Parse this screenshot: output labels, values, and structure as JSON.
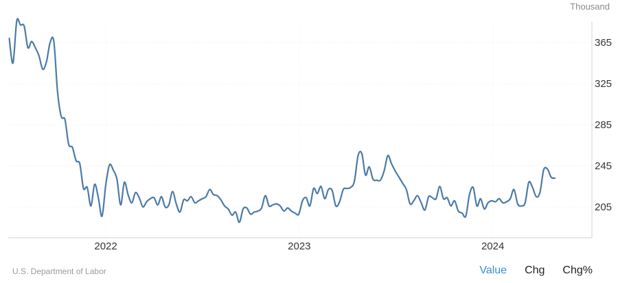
{
  "unit_label": "Thousand",
  "source": "U.S. Department of Labor",
  "toggles": [
    {
      "label": "Value",
      "active": true
    },
    {
      "label": "Chg",
      "active": false
    },
    {
      "label": "Chg%",
      "active": false
    }
  ],
  "colors": {
    "line": "#4a7aa8",
    "active_toggle": "#3b8fd4"
  },
  "chart_data": {
    "type": "line",
    "title": "",
    "xlabel": "",
    "ylabel": "",
    "y_ticks": [
      205,
      245,
      285,
      325,
      365
    ],
    "x_ticks": [
      "2022",
      "2023",
      "2024"
    ],
    "xlim": [
      "2021-07-01",
      "2024-07-06"
    ],
    "ylim": [
      175,
      390
    ],
    "grid": true,
    "series": [
      {
        "name": "",
        "points": [
          [
            "2021-07-03",
            369
          ],
          [
            "2021-07-10",
            345
          ],
          [
            "2021-07-17",
            386
          ],
          [
            "2021-07-24",
            382
          ],
          [
            "2021-07-31",
            381
          ],
          [
            "2021-08-07",
            360
          ],
          [
            "2021-08-14",
            366
          ],
          [
            "2021-08-21",
            360
          ],
          [
            "2021-08-28",
            352
          ],
          [
            "2021-09-04",
            339
          ],
          [
            "2021-09-11",
            346
          ],
          [
            "2021-09-18",
            365
          ],
          [
            "2021-09-25",
            366
          ],
          [
            "2021-10-02",
            317
          ],
          [
            "2021-10-09",
            293
          ],
          [
            "2021-10-16",
            290
          ],
          [
            "2021-10-23",
            266
          ],
          [
            "2021-10-30",
            263
          ],
          [
            "2021-11-06",
            250
          ],
          [
            "2021-11-13",
            247
          ],
          [
            "2021-11-20",
            223
          ],
          [
            "2021-11-27",
            224
          ],
          [
            "2021-12-04",
            206
          ],
          [
            "2021-12-11",
            227
          ],
          [
            "2021-12-18",
            214
          ],
          [
            "2021-12-25",
            196
          ],
          [
            "2022-01-01",
            227
          ],
          [
            "2022-01-08",
            246
          ],
          [
            "2022-01-15",
            241
          ],
          [
            "2022-01-22",
            232
          ],
          [
            "2022-01-29",
            207
          ],
          [
            "2022-02-05",
            229
          ],
          [
            "2022-02-12",
            217
          ],
          [
            "2022-02-19",
            209
          ],
          [
            "2022-02-26",
            219
          ],
          [
            "2022-03-05",
            214
          ],
          [
            "2022-03-12",
            205
          ],
          [
            "2022-03-19",
            210
          ],
          [
            "2022-03-26",
            213
          ],
          [
            "2022-04-02",
            214
          ],
          [
            "2022-04-09",
            207
          ],
          [
            "2022-04-16",
            215
          ],
          [
            "2022-04-23",
            205
          ],
          [
            "2022-04-30",
            207
          ],
          [
            "2022-05-07",
            220
          ],
          [
            "2022-05-14",
            208
          ],
          [
            "2022-05-21",
            200
          ],
          [
            "2022-05-28",
            212
          ],
          [
            "2022-06-04",
            211
          ],
          [
            "2022-06-11",
            215
          ],
          [
            "2022-06-18",
            209
          ],
          [
            "2022-06-25",
            211
          ],
          [
            "2022-07-02",
            213
          ],
          [
            "2022-07-09",
            215
          ],
          [
            "2022-07-16",
            222
          ],
          [
            "2022-07-23",
            217
          ],
          [
            "2022-07-30",
            216
          ],
          [
            "2022-08-06",
            212
          ],
          [
            "2022-08-13",
            206
          ],
          [
            "2022-08-20",
            203
          ],
          [
            "2022-08-27",
            197
          ],
          [
            "2022-09-03",
            200
          ],
          [
            "2022-09-10",
            190
          ],
          [
            "2022-09-17",
            203
          ],
          [
            "2022-09-24",
            204
          ],
          [
            "2022-10-01",
            198
          ],
          [
            "2022-10-08",
            200
          ],
          [
            "2022-10-15",
            201
          ],
          [
            "2022-10-22",
            204
          ],
          [
            "2022-10-29",
            216
          ],
          [
            "2022-11-05",
            206
          ],
          [
            "2022-11-12",
            207
          ],
          [
            "2022-11-19",
            208
          ],
          [
            "2022-11-26",
            206
          ],
          [
            "2022-12-03",
            201
          ],
          [
            "2022-12-10",
            204
          ],
          [
            "2022-12-17",
            201
          ],
          [
            "2022-12-24",
            199
          ],
          [
            "2022-12-31",
            198
          ],
          [
            "2023-01-07",
            211
          ],
          [
            "2023-01-14",
            214
          ],
          [
            "2023-01-21",
            206
          ],
          [
            "2023-01-28",
            223
          ],
          [
            "2023-02-04",
            218
          ],
          [
            "2023-02-11",
            225
          ],
          [
            "2023-02-18",
            213
          ],
          [
            "2023-02-25",
            222
          ],
          [
            "2023-03-04",
            221
          ],
          [
            "2023-03-11",
            206
          ],
          [
            "2023-03-18",
            210
          ],
          [
            "2023-03-25",
            222
          ],
          [
            "2023-04-01",
            223
          ],
          [
            "2023-04-08",
            224
          ],
          [
            "2023-04-15",
            230
          ],
          [
            "2023-04-22",
            255
          ],
          [
            "2023-04-29",
            257
          ],
          [
            "2023-05-06",
            236
          ],
          [
            "2023-05-13",
            244
          ],
          [
            "2023-05-20",
            232
          ],
          [
            "2023-05-27",
            231
          ],
          [
            "2023-06-03",
            231
          ],
          [
            "2023-06-10",
            240
          ],
          [
            "2023-06-17",
            255
          ],
          [
            "2023-06-24",
            247
          ],
          [
            "2023-07-01",
            240
          ],
          [
            "2023-07-08",
            234
          ],
          [
            "2023-07-15",
            228
          ],
          [
            "2023-07-22",
            222
          ],
          [
            "2023-07-29",
            208
          ],
          [
            "2023-08-05",
            211
          ],
          [
            "2023-08-12",
            216
          ],
          [
            "2023-08-19",
            209
          ],
          [
            "2023-08-26",
            202
          ],
          [
            "2023-09-02",
            215
          ],
          [
            "2023-09-09",
            214
          ],
          [
            "2023-09-16",
            213
          ],
          [
            "2023-09-23",
            225
          ],
          [
            "2023-09-30",
            213
          ],
          [
            "2023-10-07",
            214
          ],
          [
            "2023-10-14",
            206
          ],
          [
            "2023-10-21",
            211
          ],
          [
            "2023-10-28",
            201
          ],
          [
            "2023-11-04",
            199
          ],
          [
            "2023-11-11",
            196
          ],
          [
            "2023-11-18",
            217
          ],
          [
            "2023-11-25",
            224
          ],
          [
            "2023-12-02",
            206
          ],
          [
            "2023-12-09",
            213
          ],
          [
            "2023-12-16",
            203
          ],
          [
            "2023-12-23",
            209
          ],
          [
            "2023-12-30",
            211
          ],
          [
            "2024-01-06",
            210
          ],
          [
            "2024-01-13",
            213
          ],
          [
            "2024-01-20",
            209
          ],
          [
            "2024-01-27",
            210
          ],
          [
            "2024-02-03",
            213
          ],
          [
            "2024-02-10",
            222
          ],
          [
            "2024-02-17",
            208
          ],
          [
            "2024-02-24",
            206
          ],
          [
            "2024-03-02",
            209
          ],
          [
            "2024-03-09",
            229
          ],
          [
            "2024-03-16",
            224
          ],
          [
            "2024-03-23",
            215
          ],
          [
            "2024-03-30",
            219
          ],
          [
            "2024-04-06",
            241
          ],
          [
            "2024-04-13",
            242
          ],
          [
            "2024-04-20",
            234
          ],
          [
            "2024-04-27",
            233
          ]
        ]
      }
    ]
  }
}
